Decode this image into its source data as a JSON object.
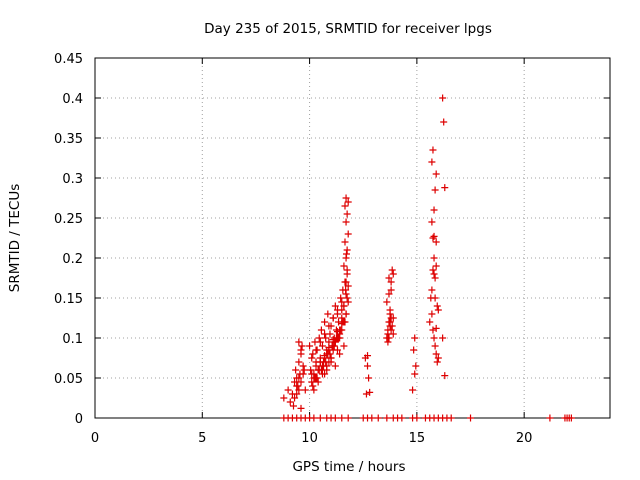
{
  "chart_data": {
    "type": "scatter",
    "title": "Day 235 of 2015, SRMTID for receiver lpgs",
    "xlabel": "GPS time / hours",
    "ylabel": "SRMTID / TECUs",
    "xlim": [
      0,
      24
    ],
    "ylim": [
      0,
      0.45
    ],
    "x_ticks": [
      0,
      5,
      10,
      15,
      20
    ],
    "x_tick_labels": [
      "0",
      "5",
      "10",
      "15",
      "20"
    ],
    "y_ticks": [
      0,
      0.05,
      0.1,
      0.15,
      0.2,
      0.25,
      0.3,
      0.35,
      0.4,
      0.45
    ],
    "y_tick_labels": [
      "0",
      "0.05",
      "0.1",
      "0.15",
      "0.2",
      "0.25",
      "0.3",
      "0.35",
      "0.4",
      "0.45"
    ],
    "grid": true,
    "marker": "+",
    "marker_color": "#dd0000",
    "series": [
      {
        "name": "SRMTID",
        "x": [
          8.8,
          9.0,
          9.2,
          9.4,
          9.6,
          9.8,
          10.0,
          10.2,
          10.5,
          10.8,
          11.0,
          11.2,
          11.5,
          11.8,
          12.5,
          12.7,
          12.9,
          13.2,
          13.6,
          13.9,
          14.1,
          14.3,
          14.8,
          15.0,
          15.4,
          15.6,
          15.8,
          16.0,
          16.2,
          16.4,
          16.6,
          17.5,
          21.2,
          21.9,
          22.0,
          22.1,
          22.2,
          8.8,
          9.0,
          9.1,
          9.2,
          9.25,
          9.3,
          9.35,
          9.4,
          9.45,
          9.5,
          9.5,
          9.55,
          9.6,
          9.6,
          9.65,
          9.7,
          9.75,
          9.8,
          9.3,
          9.4,
          9.5,
          9.6,
          9.7,
          9.5,
          9.6,
          9.4,
          10.0,
          10.05,
          10.1,
          10.15,
          10.2,
          10.25,
          10.3,
          10.35,
          10.4,
          10.45,
          10.5,
          10.55,
          10.6,
          10.65,
          10.7,
          10.75,
          10.8,
          10.85,
          10.9,
          10.95,
          11.0,
          11.05,
          11.1,
          11.15,
          11.2,
          11.25,
          11.3,
          11.35,
          11.4,
          11.45,
          11.5,
          11.55,
          11.6,
          11.65,
          11.7,
          11.75,
          11.8,
          10.1,
          10.2,
          10.3,
          10.4,
          10.5,
          10.6,
          10.7,
          10.8,
          10.9,
          11.0,
          11.1,
          11.2,
          11.3,
          11.4,
          11.5,
          11.6,
          11.7,
          11.8,
          10.15,
          10.35,
          10.55,
          10.75,
          10.95,
          11.15,
          11.35,
          11.55,
          11.75,
          10.2,
          10.4,
          10.6,
          10.8,
          11.0,
          11.2,
          11.4,
          11.6,
          11.7,
          11.75,
          11.8,
          11.6,
          11.65,
          11.7,
          11.75,
          11.8,
          11.65,
          11.7,
          11.72,
          11.75,
          11.68,
          11.7,
          11.6,
          11.5,
          11.4,
          11.3,
          11.2,
          11.1,
          11.0,
          10.9,
          10.8,
          10.7,
          10.3,
          10.5,
          10.7,
          10.9,
          11.1,
          11.3,
          11.5,
          11.7,
          10.25,
          10.45,
          10.65,
          10.85,
          11.05,
          11.25,
          11.45,
          11.65,
          10.1,
          10.3,
          10.5,
          10.7,
          10.9,
          11.1,
          11.3,
          11.5,
          12.6,
          12.7,
          12.75,
          12.8,
          12.7,
          12.65,
          13.6,
          13.65,
          13.7,
          13.75,
          13.8,
          13.85,
          13.9,
          13.6,
          13.7,
          13.8,
          13.9,
          13.65,
          13.75,
          13.85,
          13.7,
          13.8,
          13.75,
          13.8,
          13.7,
          13.65,
          13.9,
          13.75,
          14.8,
          14.9,
          14.95,
          14.9,
          14.85,
          15.6,
          15.65,
          15.7,
          15.75,
          15.8,
          15.85,
          15.9,
          15.95,
          16.0,
          15.7,
          15.8,
          15.9,
          15.75,
          15.85,
          15.95,
          15.8,
          15.9,
          15.7,
          15.75,
          15.8,
          15.85,
          15.9,
          15.7,
          15.75,
          15.8,
          15.85,
          15.9,
          16.0,
          16.2,
          16.25,
          16.3,
          16.3,
          16.2
        ],
        "y": [
          0,
          0,
          0,
          0,
          0,
          0,
          0,
          0,
          0,
          0,
          0,
          0,
          0,
          0,
          0,
          0,
          0,
          0,
          0,
          0,
          0,
          0,
          0,
          0,
          0,
          0,
          0,
          0,
          0,
          0,
          0,
          0,
          0,
          0,
          0,
          0,
          0,
          0.025,
          0.035,
          0.02,
          0.03,
          0.015,
          0.045,
          0.06,
          0.05,
          0.04,
          0.035,
          0.07,
          0.055,
          0.08,
          0.045,
          0.09,
          0.065,
          0.06,
          0.035,
          0.025,
          0.03,
          0.05,
          0.085,
          0.055,
          0.095,
          0.012,
          0.04,
          0.09,
          0.06,
          0.055,
          0.08,
          0.05,
          0.095,
          0.07,
          0.085,
          0.06,
          0.1,
          0.075,
          0.11,
          0.09,
          0.065,
          0.12,
          0.1,
          0.085,
          0.13,
          0.095,
          0.105,
          0.115,
          0.09,
          0.125,
          0.1,
          0.14,
          0.11,
          0.13,
          0.12,
          0.105,
          0.15,
          0.135,
          0.16,
          0.14,
          0.17,
          0.155,
          0.18,
          0.165,
          0.045,
          0.055,
          0.05,
          0.06,
          0.07,
          0.065,
          0.075,
          0.08,
          0.085,
          0.07,
          0.09,
          0.095,
          0.085,
          0.1,
          0.11,
          0.12,
          0.13,
          0.145,
          0.04,
          0.05,
          0.06,
          0.07,
          0.08,
          0.09,
          0.1,
          0.12,
          0.15,
          0.035,
          0.045,
          0.055,
          0.065,
          0.075,
          0.065,
          0.08,
          0.09,
          0.2,
          0.21,
          0.23,
          0.19,
          0.22,
          0.245,
          0.255,
          0.27,
          0.265,
          0.275,
          0.205,
          0.185,
          0.16,
          0.17,
          0.14,
          0.125,
          0.11,
          0.1,
          0.095,
          0.085,
          0.075,
          0.07,
          0.06,
          0.055,
          0.065,
          0.07,
          0.078,
          0.088,
          0.098,
          0.108,
          0.118,
          0.13,
          0.05,
          0.06,
          0.07,
          0.08,
          0.09,
          0.1,
          0.11,
          0.12,
          0.075,
          0.085,
          0.095,
          0.105,
          0.115,
          0.125,
          0.135,
          0.145,
          0.075,
          0.065,
          0.05,
          0.032,
          0.078,
          0.03,
          0.1,
          0.11,
          0.12,
          0.13,
          0.125,
          0.115,
          0.105,
          0.145,
          0.155,
          0.17,
          0.18,
          0.095,
          0.135,
          0.185,
          0.175,
          0.16,
          0.12,
          0.11,
          0.1,
          0.105,
          0.125,
          0.115,
          0.035,
          0.055,
          0.065,
          0.1,
          0.085,
          0.12,
          0.15,
          0.13,
          0.11,
          0.1,
          0.09,
          0.08,
          0.07,
          0.075,
          0.16,
          0.18,
          0.19,
          0.185,
          0.175,
          0.14,
          0.2,
          0.22,
          0.245,
          0.225,
          0.26,
          0.285,
          0.305,
          0.32,
          0.335,
          0.227,
          0.15,
          0.112,
          0.135,
          0.4,
          0.37,
          0.288,
          0.053,
          0.1
        ]
      }
    ]
  }
}
